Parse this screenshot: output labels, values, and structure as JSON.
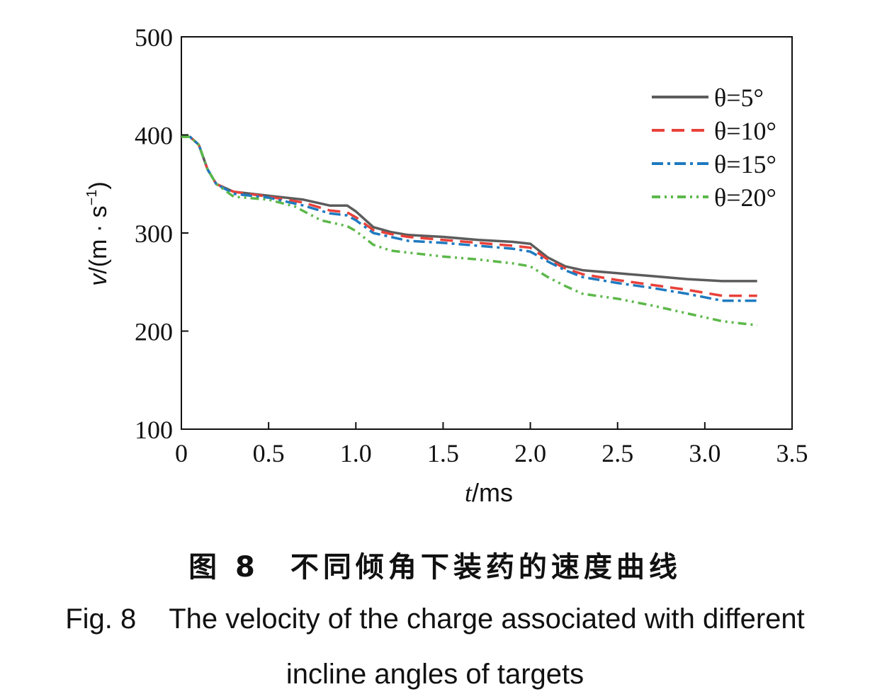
{
  "chart_data": {
    "type": "line",
    "xlabel_var": "t",
    "xlabel_unit": "/ms",
    "ylabel_var": "v",
    "ylabel_unit": "/(m · s",
    "ylabel_exp": "−1",
    "ylabel_close": ")",
    "xlim": [
      0,
      3.5
    ],
    "ylim": [
      100,
      500
    ],
    "xticks": [
      "0",
      "0.5",
      "1.0",
      "1.5",
      "2.0",
      "2.5",
      "3.0",
      "3.5"
    ],
    "yticks": [
      "100",
      "200",
      "300",
      "400",
      "500"
    ],
    "grid": false,
    "legend_position": "top-right",
    "series": [
      {
        "name": "θ=5°",
        "color": "#5c5c5c",
        "dash": "solid",
        "x": [
          0,
          0.05,
          0.1,
          0.15,
          0.2,
          0.3,
          0.5,
          0.7,
          0.85,
          0.95,
          1.0,
          1.1,
          1.2,
          1.3,
          1.5,
          1.7,
          1.9,
          2.0,
          2.1,
          2.2,
          2.3,
          2.5,
          2.7,
          2.9,
          3.1,
          3.3
        ],
        "y": [
          398,
          398,
          390,
          365,
          350,
          342,
          338,
          334,
          328,
          328,
          322,
          306,
          301,
          298,
          296,
          293,
          291,
          289,
          275,
          266,
          262,
          259,
          256,
          253,
          251,
          251
        ]
      },
      {
        "name": "θ=10°",
        "color": "#e8413a",
        "dash": "dashed",
        "x": [
          0,
          0.05,
          0.1,
          0.15,
          0.2,
          0.3,
          0.5,
          0.7,
          0.85,
          0.95,
          1.0,
          1.1,
          1.2,
          1.3,
          1.5,
          1.7,
          1.9,
          2.0,
          2.1,
          2.2,
          2.3,
          2.5,
          2.7,
          2.9,
          3.1,
          3.3
        ],
        "y": [
          398,
          398,
          390,
          365,
          350,
          342,
          337,
          331,
          323,
          321,
          316,
          303,
          299,
          296,
          293,
          290,
          287,
          285,
          273,
          264,
          258,
          252,
          247,
          242,
          236,
          236
        ]
      },
      {
        "name": "θ=15°",
        "color": "#1f7ac0",
        "dash": "dashdot",
        "x": [
          0,
          0.05,
          0.1,
          0.15,
          0.2,
          0.3,
          0.5,
          0.7,
          0.85,
          0.95,
          1.0,
          1.1,
          1.2,
          1.3,
          1.5,
          1.7,
          1.9,
          2.0,
          2.1,
          2.2,
          2.3,
          2.5,
          2.7,
          2.9,
          3.1,
          3.3
        ],
        "y": [
          398,
          398,
          390,
          365,
          350,
          340,
          336,
          328,
          320,
          318,
          313,
          300,
          296,
          292,
          290,
          287,
          284,
          281,
          271,
          262,
          255,
          249,
          244,
          238,
          231,
          231
        ]
      },
      {
        "name": "θ=20°",
        "color": "#5cb84a",
        "dash": "dashdotdot",
        "x": [
          0,
          0.05,
          0.1,
          0.15,
          0.2,
          0.3,
          0.5,
          0.65,
          0.8,
          0.95,
          1.0,
          1.1,
          1.2,
          1.3,
          1.5,
          1.7,
          1.9,
          2.0,
          2.1,
          2.2,
          2.3,
          2.5,
          2.7,
          2.9,
          3.1,
          3.3
        ],
        "y": [
          398,
          398,
          390,
          365,
          350,
          337,
          334,
          327,
          313,
          307,
          302,
          288,
          282,
          280,
          276,
          273,
          269,
          266,
          255,
          246,
          238,
          233,
          226,
          218,
          210,
          206
        ]
      }
    ]
  },
  "caption": {
    "cn_figno": "图 8",
    "cn_title": "不同倾角下装药的速度曲线",
    "en_figno": "Fig. 8",
    "en_line1": "The velocity of the charge associated with different",
    "en_line2": "incline angles of targets"
  }
}
